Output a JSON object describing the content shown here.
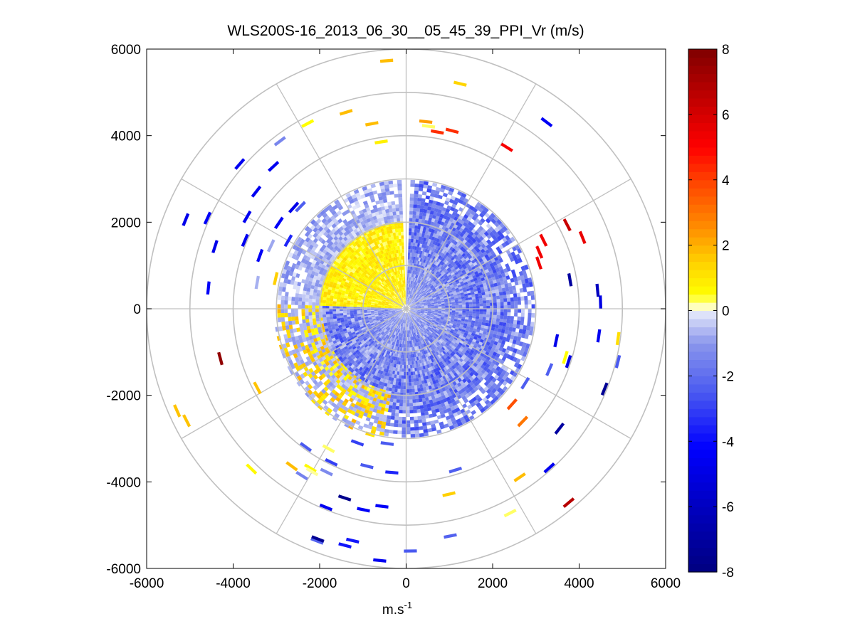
{
  "chart_data": {
    "type": "heatmap",
    "subtype": "polar-ppi",
    "title": "WLS200S-16_2013_06_30__05_45_39_PPI_Vr (m/s)",
    "xlabel_base": "m.s",
    "xlabel_sup": "-1",
    "ylabel": "",
    "xlim": [
      -6000,
      6000
    ],
    "ylim": [
      -6000,
      6000
    ],
    "x_ticks": [
      "-6000",
      "-4000",
      "-2000",
      "0",
      "2000",
      "4000",
      "6000"
    ],
    "y_ticks": [
      "6000",
      "4000",
      "2000",
      "0",
      "-2000",
      "-4000",
      "-6000"
    ],
    "range_rings": [
      1000,
      2000,
      3000,
      4000,
      5000,
      6000
    ],
    "spoke_angles_deg": [
      0,
      30,
      60,
      90,
      120,
      150,
      180,
      210,
      240,
      270,
      300,
      330
    ],
    "colorbar": {
      "min": -8,
      "max": 8,
      "ticks": [
        "8",
        "6",
        "4",
        "2",
        "0",
        "-2",
        "-4",
        "-6",
        "-8"
      ],
      "ramp": [
        [
          -8,
          "#000080"
        ],
        [
          -6,
          "#0000c0"
        ],
        [
          -4.2,
          "#0000ff"
        ],
        [
          -2.5,
          "#4a5af0"
        ],
        [
          -1,
          "#8a96ec"
        ],
        [
          -0.05,
          "#e4e8fa"
        ],
        [
          0,
          "#ffffff"
        ],
        [
          0.15,
          "#ffffb0"
        ],
        [
          0.5,
          "#ffff00"
        ],
        [
          1.5,
          "#ffd000"
        ],
        [
          2.5,
          "#ff9000"
        ],
        [
          4,
          "#ff4000"
        ],
        [
          5,
          "#ff0000"
        ],
        [
          6.5,
          "#c00000"
        ],
        [
          8,
          "#800000"
        ]
      ]
    },
    "inner_field": {
      "r_max": 3000,
      "positive_sector_deg": [
        92,
        178
      ],
      "positive_max": 1.2,
      "negative_min": -2.6,
      "gap_deg": [
        88,
        92
      ]
    },
    "scattered_points": [
      {
        "r": 5750,
        "a": 94.5,
        "v": 1.8
      },
      {
        "r": 5350,
        "a": 76.5,
        "v": 1.4
      },
      {
        "r": 5400,
        "a": 53,
        "v": -4.5
      },
      {
        "r": 4850,
        "a": 118,
        "v": 0.5
      },
      {
        "r": 4750,
        "a": 107,
        "v": 1.8
      },
      {
        "r": 4350,
        "a": 100.5,
        "v": 1.8
      },
      {
        "r": 3900,
        "a": 98.5,
        "v": 0.8
      },
      {
        "r": 4350,
        "a": 84,
        "v": 2.3
      },
      {
        "r": 4250,
        "a": 83,
        "v": 0.3
      },
      {
        "r": 4150,
        "a": 80,
        "v": 4.3
      },
      {
        "r": 4250,
        "a": 75.5,
        "v": 4.3
      },
      {
        "r": 4400,
        "a": 58,
        "v": 5.2
      },
      {
        "r": 5100,
        "a": 139,
        "v": -4.6
      },
      {
        "r": 4850,
        "a": 127,
        "v": -1.4
      },
      {
        "r": 4500,
        "a": 133,
        "v": -4.6
      },
      {
        "r": 5500,
        "a": 158,
        "v": -4.8
      },
      {
        "r": 5050,
        "a": 155.5,
        "v": -4.4
      },
      {
        "r": 4650,
        "a": 162,
        "v": -4.8
      },
      {
        "r": 4250,
        "a": 150,
        "v": -4.6
      },
      {
        "r": 3550,
        "a": 146,
        "v": -4.4
      },
      {
        "r": 3500,
        "a": 138,
        "v": -4.8
      },
      {
        "r": 4050,
        "a": 157,
        "v": -4.6
      },
      {
        "r": 3600,
        "a": 160,
        "v": -4.4
      },
      {
        "r": 4400,
        "a": 142,
        "v": -4.6
      },
      {
        "r": 3400,
        "a": 136,
        "v": -2.4
      },
      {
        "r": 3450,
        "a": 155,
        "v": -0.8
      },
      {
        "r": 3100,
        "a": 167,
        "v": 1.5
      },
      {
        "r": 3500,
        "a": 170,
        "v": -0.7
      },
      {
        "r": 3150,
        "a": 150,
        "v": -3.5
      },
      {
        "r": 4600,
        "a": 174,
        "v": -4.4
      },
      {
        "r": 4450,
        "a": 195,
        "v": 7.6
      },
      {
        "r": 5800,
        "a": 204,
        "v": 1.7
      },
      {
        "r": 5700,
        "a": 207,
        "v": 1.7
      },
      {
        "r": 3900,
        "a": 208,
        "v": 1.7
      },
      {
        "r": 5150,
        "a": 226,
        "v": 0.6
      },
      {
        "r": 4500,
        "a": 234,
        "v": 1.8
      },
      {
        "r": 4300,
        "a": 239,
        "v": 0.6
      },
      {
        "r": 4550,
        "a": 238,
        "v": -1.5
      },
      {
        "r": 4350,
        "a": 240,
        "v": 0.2
      },
      {
        "r": 4950,
        "a": 248,
        "v": -4.6
      },
      {
        "r": 5750,
        "a": 249,
        "v": -2.3
      },
      {
        "r": 5650,
        "a": 255.5,
        "v": -3.8
      },
      {
        "r": 5850,
        "a": 264,
        "v": -4.6
      },
      {
        "r": 4600,
        "a": 252,
        "v": -7.6
      },
      {
        "r": 5700,
        "a": 249,
        "v": -7.4
      },
      {
        "r": 5500,
        "a": 257,
        "v": -3.8
      },
      {
        "r": 4750,
        "a": 258,
        "v": -4.4
      },
      {
        "r": 4600,
        "a": 263,
        "v": -4.4
      },
      {
        "r": 3800,
        "a": 265,
        "v": -3.5
      },
      {
        "r": 3150,
        "a": 262,
        "v": -2.5
      },
      {
        "r": 3750,
        "a": 256,
        "v": -2.5
      },
      {
        "r": 3300,
        "a": 250,
        "v": -3.0
      },
      {
        "r": 3950,
        "a": 234,
        "v": -2.5
      },
      {
        "r": 4200,
        "a": 244,
        "v": -1.3
      },
      {
        "r": 3950,
        "a": 244,
        "v": -3.0
      },
      {
        "r": 3700,
        "a": 241,
        "v": 0.3
      },
      {
        "r": 5350,
        "a": 281,
        "v": -2.3
      },
      {
        "r": 5600,
        "a": 271,
        "v": -2.5
      },
      {
        "r": 5300,
        "a": 297,
        "v": 0.3
      },
      {
        "r": 4950,
        "a": 312,
        "v": -4.6
      },
      {
        "r": 5850,
        "a": 310,
        "v": 6.7
      },
      {
        "r": 4700,
        "a": 304,
        "v": 1.8
      },
      {
        "r": 3900,
        "a": 287,
        "v": -2.4
      },
      {
        "r": 4400,
        "a": 283,
        "v": 1.5
      },
      {
        "r": 3750,
        "a": 316,
        "v": 3.0
      },
      {
        "r": 3300,
        "a": 318,
        "v": 3.7
      },
      {
        "r": 4500,
        "a": 322,
        "v": -7.0
      },
      {
        "r": 4950,
        "a": 338,
        "v": -7.4
      },
      {
        "r": 4500,
        "a": 352,
        "v": -4.6
      },
      {
        "r": 4950,
        "a": 352,
        "v": 1.2
      },
      {
        "r": 5050,
        "a": 346,
        "v": -2.5
      },
      {
        "r": 3850,
        "a": 343,
        "v": 0.5
      },
      {
        "r": 3600,
        "a": 337,
        "v": -2.4
      },
      {
        "r": 3550,
        "a": 348,
        "v": -4.8
      },
      {
        "r": 3250,
        "a": 328,
        "v": -2.4
      },
      {
        "r": 3850,
        "a": 10,
        "v": -7.0
      },
      {
        "r": 4200,
        "a": 27.5,
        "v": 6.3
      },
      {
        "r": 3550,
        "a": 26.5,
        "v": 5.3
      },
      {
        "r": 3350,
        "a": 23,
        "v": 5.3
      },
      {
        "r": 3250,
        "a": 19,
        "v": 5.3
      },
      {
        "r": 4500,
        "a": 2,
        "v": -5.0
      },
      {
        "r": 4450,
        "a": 5.5,
        "v": -6.0
      },
      {
        "r": 3950,
        "a": 342,
        "v": -5.0
      },
      {
        "r": 4400,
        "a": 22,
        "v": 5.5
      }
    ]
  }
}
